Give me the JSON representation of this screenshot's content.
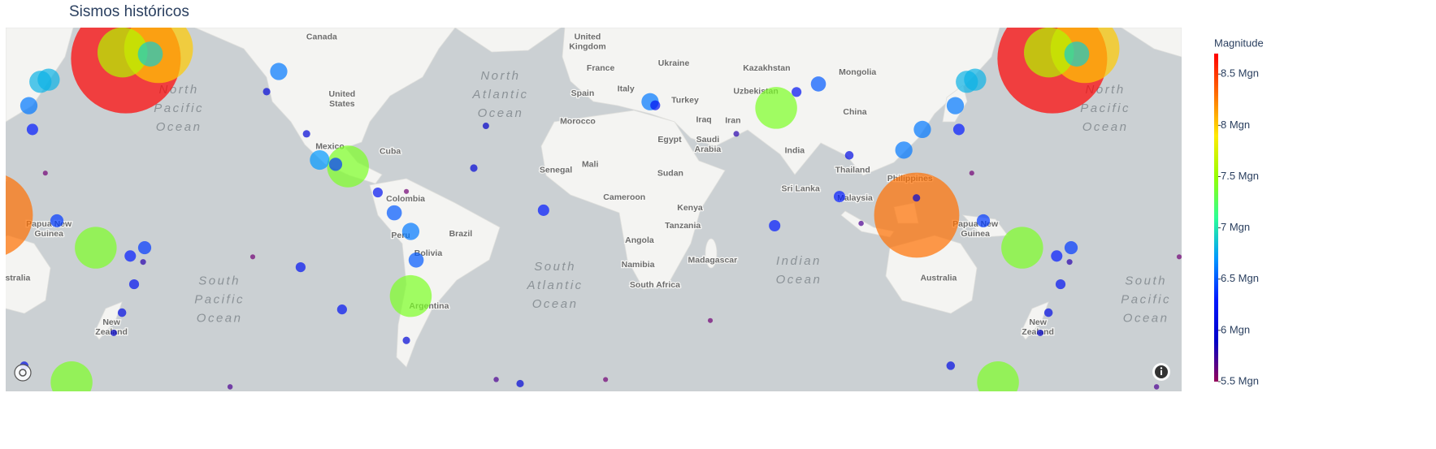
{
  "chart_data": {
    "type": "scattermap",
    "title": "Sismos históricos",
    "colorbar_title": "Magnitude",
    "clim": [
      5.5,
      8.7
    ],
    "colorscale": [
      "rgb(150,0,90)",
      "rgb(0,0,200)",
      "rgb(0,25,255)",
      "rgb(0,152,255)",
      "rgb(44,255,150)",
      "rgb(151,255,0)",
      "rgb(255,234,0)",
      "rgb(255,111,0)",
      "rgb(255,0,0)"
    ],
    "colorbar_ticks": [
      {
        "value": 5.5,
        "label": "5.5 Mgn"
      },
      {
        "value": 6,
        "label": "6 Mgn"
      },
      {
        "value": 6.5,
        "label": "6.5 Mgn"
      },
      {
        "value": 7,
        "label": "7 Mgn"
      },
      {
        "value": 7.5,
        "label": "7.5 Mgn"
      },
      {
        "value": 8,
        "label": "8 Mgn"
      },
      {
        "value": 8.5,
        "label": "8.5 Mgn"
      }
    ],
    "lon": [
      176.3,
      123.6,
      -171,
      175,
      164.6,
      -97.4,
      -73,
      69,
      155.2,
      -174.2,
      146.3,
      143.1,
      -108.4,
      20,
      138.6,
      118.6,
      125.8,
      -124.3,
      -73,
      -79.4,
      -70.9,
      85.4,
      149.5,
      -176.4,
      -102.2,
      140,
      178,
      68.4,
      93.6,
      -21.4,
      22,
      179.5,
      -85.8,
      76.9,
      -115.8,
      -99.7,
      174.8,
      136.8,
      97.4,
      -129,
      -113.5,
      -74.7,
      -48.5,
      -30.5,
      123.5,
      171.6,
      -43.8,
      53.5,
      102,
      -39.8,
      -143.2,
      43.4,
      2.7,
      -134.4,
      -74.7,
      145,
      -177
    ],
    "lat": [
      50.5,
      -2.2,
      52.9,
      52,
      -14.7,
      16.5,
      -31.9,
      36.7,
      -55.6,
      51.6,
      45,
      44.4,
      18.9,
      38.6,
      37.4,
      22.5,
      29.7,
      47.2,
      -8.5,
      -1.3,
      -19.3,
      43.8,
      -4.4,
      -14.7,
      17.3,
      29.7,
      -17.8,
      -6.3,
      5,
      -0.3,
      37.5,
      -27.9,
      6.6,
      41.5,
      -21.9,
      -36.2,
      -37.2,
      -51.8,
      20.6,
      41.6,
      28.2,
      -45.3,
      15.9,
      -55.9,
      4.5,
      -43.2,
      30.9,
      28.2,
      -5.4,
      -55,
      -56.6,
      -39.6,
      -55,
      -18.1,
      7,
      14,
      -20
    ],
    "magnitude": [
      8.7,
      8.3,
      8.0,
      7.6,
      7.4,
      7.4,
      7.4,
      7.4,
      7.4,
      6.9,
      6.8,
      6.8,
      6.7,
      6.6,
      6.6,
      6.6,
      6.6,
      6.6,
      6.6,
      6.5,
      6.5,
      6.5,
      6.4,
      6.4,
      6.4,
      6.3,
      6.3,
      6.3,
      6.3,
      6.3,
      6.2,
      6.2,
      6.2,
      6.2,
      6.2,
      6.2,
      6.1,
      6.1,
      6.1,
      6.0,
      6.0,
      6.0,
      6.0,
      6.0,
      6.0,
      5.9,
      5.9,
      5.8,
      5.7,
      5.7,
      5.7,
      5.6,
      5.6,
      5.6,
      5.6,
      5.6,
      5.8
    ],
    "map_labels": [
      {
        "lines": [
          "Canada"
        ],
        "lon": -107.6,
        "lat": 55.5,
        "kind": "country"
      },
      {
        "lines": [
          "United",
          "Kingdom"
        ],
        "lon": -4.3,
        "lat": 54.4,
        "kind": "country"
      },
      {
        "lines": [
          "Ukraine"
        ],
        "lon": 29.2,
        "lat": 49.3,
        "kind": "country"
      },
      {
        "lines": [
          "Kazakhstan"
        ],
        "lon": 65.3,
        "lat": 48,
        "kind": "country"
      },
      {
        "lines": [
          "Mongolia"
        ],
        "lon": 100.6,
        "lat": 46.9,
        "kind": "country"
      },
      {
        "lines": [
          "France"
        ],
        "lon": 0.8,
        "lat": 48,
        "kind": "country"
      },
      {
        "lines": [
          "United",
          "States"
        ],
        "lon": -99.7,
        "lat": 39.4,
        "kind": "country"
      },
      {
        "lines": [
          "Spain"
        ],
        "lon": -6.2,
        "lat": 41.1,
        "kind": "country"
      },
      {
        "lines": [
          "Italy"
        ],
        "lon": 10.6,
        "lat": 42.4,
        "kind": "country"
      },
      {
        "lines": [
          "Turkey"
        ],
        "lon": 33.6,
        "lat": 39,
        "kind": "country"
      },
      {
        "lines": [
          "Uzbekistan"
        ],
        "lon": 61.1,
        "lat": 41.6,
        "kind": "country"
      },
      {
        "lines": [
          "Iran"
        ],
        "lon": 52.2,
        "lat": 32.6,
        "kind": "country"
      },
      {
        "lines": [
          "Iraq"
        ],
        "lon": 40.9,
        "lat": 32.9,
        "kind": "country"
      },
      {
        "lines": [
          "China"
        ],
        "lon": 99.6,
        "lat": 35.4,
        "kind": "country"
      },
      {
        "lines": [
          "Morocco"
        ],
        "lon": -8.1,
        "lat": 32.3,
        "kind": "country"
      },
      {
        "lines": [
          "Egypt"
        ],
        "lon": 27.6,
        "lat": 26.2,
        "kind": "country"
      },
      {
        "lines": [
          "Saudi",
          "Arabia"
        ],
        "lon": 42.4,
        "lat": 24.4,
        "kind": "country"
      },
      {
        "lines": [
          "India"
        ],
        "lon": 76.2,
        "lat": 22.3,
        "kind": "country"
      },
      {
        "lines": [
          "Mexico"
        ],
        "lon": -104.4,
        "lat": 23.7,
        "kind": "country"
      },
      {
        "lines": [
          "Cuba"
        ],
        "lon": -81,
        "lat": 22,
        "kind": "country"
      },
      {
        "lines": [
          "Mali"
        ],
        "lon": -3.3,
        "lat": 17.2,
        "kind": "country"
      },
      {
        "lines": [
          "Senegal"
        ],
        "lon": -16.6,
        "lat": 15,
        "kind": "country"
      },
      {
        "lines": [
          "Sudan"
        ],
        "lon": 27.9,
        "lat": 13.8,
        "kind": "country"
      },
      {
        "lines": [
          "Thailand"
        ],
        "lon": 98.7,
        "lat": 15,
        "kind": "country"
      },
      {
        "lines": [
          "Philippines"
        ],
        "lon": 121,
        "lat": 11.9,
        "kind": "country"
      },
      {
        "lines": [
          "Colombia"
        ],
        "lon": -75,
        "lat": 4.1,
        "kind": "country"
      },
      {
        "lines": [
          "Sri Lanka"
        ],
        "lon": 78.5,
        "lat": 7.9,
        "kind": "country"
      },
      {
        "lines": [
          "Malaysia"
        ],
        "lon": 99.6,
        "lat": 4.4,
        "kind": "country"
      },
      {
        "lines": [
          "Cameroon"
        ],
        "lon": 10,
        "lat": 4.7,
        "kind": "country"
      },
      {
        "lines": [
          "Kenya"
        ],
        "lon": 35.5,
        "lat": 0.6,
        "kind": "country"
      },
      {
        "lines": [
          "Tanzania"
        ],
        "lon": 32.7,
        "lat": -6.3,
        "kind": "country"
      },
      {
        "lines": [
          "Peru"
        ],
        "lon": -76.9,
        "lat": -10.1,
        "kind": "country"
      },
      {
        "lines": [
          "Brazil"
        ],
        "lon": -53.6,
        "lat": -9.5,
        "kind": "country"
      },
      {
        "lines": [
          "Angola"
        ],
        "lon": 15.9,
        "lat": -12,
        "kind": "country"
      },
      {
        "lines": [
          "Papua New",
          "Guinea"
        ],
        "lon": 146.4,
        "lat": -7.6,
        "kind": "country"
      },
      {
        "lines": [
          "Bolivia"
        ],
        "lon": -66.2,
        "lat": -16.9,
        "kind": "country"
      },
      {
        "lines": [
          "Namibia"
        ],
        "lon": 15.3,
        "lat": -21.1,
        "kind": "country"
      },
      {
        "lines": [
          "Madagascar"
        ],
        "lon": 44.3,
        "lat": -19.4,
        "kind": "country"
      },
      {
        "lines": [
          "South Africa"
        ],
        "lon": 21.9,
        "lat": -28.2,
        "kind": "country"
      },
      {
        "lines": [
          "Australia"
        ],
        "lon": 132.1,
        "lat": -25.8,
        "kind": "country"
      },
      {
        "lines": [
          "Argentina"
        ],
        "lon": -65.9,
        "lat": -35.2,
        "kind": "country"
      },
      {
        "lines": [
          "New",
          "Zealand"
        ],
        "lon": 170.7,
        "lat": -41.6,
        "kind": "country"
      },
      {
        "lines": [
          "North",
          "Pacific",
          "Ocean"
        ],
        "lon": -163.1,
        "lat": 36.4,
        "kind": "ocean"
      },
      {
        "lines": [
          "North",
          "Atlantic",
          "Ocean"
        ],
        "lon": -38.1,
        "lat": 40.6,
        "kind": "ocean"
      },
      {
        "lines": [
          "South",
          "Atlantic",
          "Ocean"
        ],
        "lon": -16.9,
        "lat": -28.4,
        "kind": "ocean"
      },
      {
        "lines": [
          "Indian",
          "Ocean"
        ],
        "lon": 77.8,
        "lat": -23.2,
        "kind": "ocean"
      },
      {
        "lines": [
          "South",
          "Pacific",
          "Ocean"
        ],
        "lon": -147.3,
        "lat": -33.2,
        "kind": "ocean"
      }
    ]
  }
}
